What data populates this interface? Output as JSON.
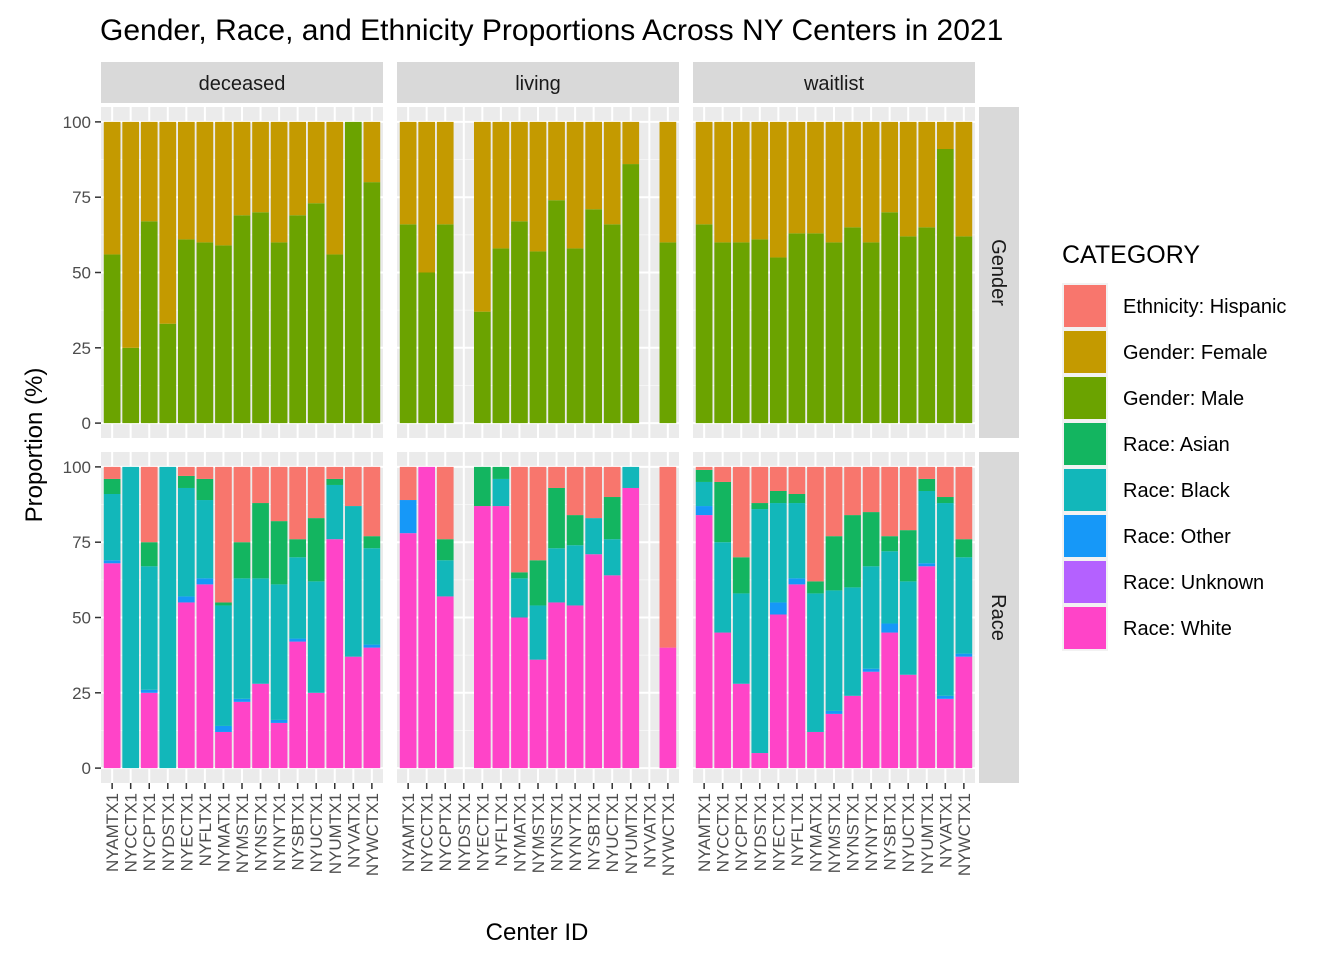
{
  "chart_data": {
    "type": "bar",
    "stacked": true,
    "title": "Gender, Race, and Ethnicity Proportions Across NY Centers in 2021",
    "xlabel": "Center ID",
    "ylabel": "Proportion (%)",
    "ylim": [
      0,
      100
    ],
    "yticks": [
      0,
      25,
      50,
      75,
      100
    ],
    "grid": true,
    "legend_position": "right",
    "legend_title": "CATEGORY",
    "categories": [
      "NYAMTX1",
      "NYCCTX1",
      "NYCPTX1",
      "NYDSTX1",
      "NYECTX1",
      "NYFLTX1",
      "NYMATX1",
      "NYMSTX1",
      "NYNSTX1",
      "NYNYTX1",
      "NYSBTX1",
      "NYUCTX1",
      "NYUMTX1",
      "NYVATX1",
      "NYWCTX1"
    ],
    "columns": [
      "deceased",
      "living",
      "waitlist"
    ],
    "rows": [
      "Gender",
      "Race"
    ],
    "series": [
      {
        "name": "Ethnicity: Hispanic",
        "color": "#F8766D"
      },
      {
        "name": "Gender: Female",
        "color": "#C49A00"
      },
      {
        "name": "Gender: Male",
        "color": "#6BA300"
      },
      {
        "name": "Race: Asian",
        "color": "#13B560"
      },
      {
        "name": "Race: Black",
        "color": "#12B7BA"
      },
      {
        "name": "Race: Other",
        "color": "#1698F8"
      },
      {
        "name": "Race: Unknown",
        "color": "#B461FF"
      },
      {
        "name": "Race: White",
        "color": "#FF44C8"
      }
    ],
    "stack_order_bottom_to_top": {
      "Gender": [
        "Gender: Male",
        "Gender: Female"
      ],
      "Race": [
        "Race: White",
        "Race: Unknown",
        "Race: Other",
        "Race: Black",
        "Race: Asian",
        "Ethnicity: Hispanic"
      ]
    },
    "values": {
      "deceased": {
        "Gender": {
          "NYAMTX1": {
            "Gender: Male": 56,
            "Gender: Female": 44
          },
          "NYCCTX1": {
            "Gender: Male": 25,
            "Gender: Female": 75
          },
          "NYCPTX1": {
            "Gender: Male": 67,
            "Gender: Female": 33
          },
          "NYDSTX1": {
            "Gender: Male": 33,
            "Gender: Female": 67
          },
          "NYECTX1": {
            "Gender: Male": 61,
            "Gender: Female": 39
          },
          "NYFLTX1": {
            "Gender: Male": 60,
            "Gender: Female": 40
          },
          "NYMATX1": {
            "Gender: Male": 59,
            "Gender: Female": 41
          },
          "NYMSTX1": {
            "Gender: Male": 69,
            "Gender: Female": 31
          },
          "NYNSTX1": {
            "Gender: Male": 70,
            "Gender: Female": 30
          },
          "NYNYTX1": {
            "Gender: Male": 60,
            "Gender: Female": 40
          },
          "NYSBTX1": {
            "Gender: Male": 69,
            "Gender: Female": 31
          },
          "NYUCTX1": {
            "Gender: Male": 73,
            "Gender: Female": 27
          },
          "NYUMTX1": {
            "Gender: Male": 56,
            "Gender: Female": 44
          },
          "NYVATX1": {
            "Gender: Male": 100,
            "Gender: Female": 0
          },
          "NYWCTX1": {
            "Gender: Male": 80,
            "Gender: Female": 20
          }
        },
        "Race": {
          "NYAMTX1": {
            "Race: White": 68,
            "Race: Unknown": 0,
            "Race: Other": 1,
            "Race: Black": 22,
            "Race: Asian": 5,
            "Ethnicity: Hispanic": 4
          },
          "NYCCTX1": {
            "Race: White": 0,
            "Race: Unknown": 0,
            "Race: Other": 0,
            "Race: Black": 100,
            "Race: Asian": 0,
            "Ethnicity: Hispanic": 0
          },
          "NYCPTX1": {
            "Race: White": 25,
            "Race: Unknown": 0,
            "Race: Other": 1,
            "Race: Black": 41,
            "Race: Asian": 8,
            "Ethnicity: Hispanic": 25
          },
          "NYDSTX1": {
            "Race: White": 0,
            "Race: Unknown": 0,
            "Race: Other": 0,
            "Race: Black": 100,
            "Race: Asian": 0,
            "Ethnicity: Hispanic": 0
          },
          "NYECTX1": {
            "Race: White": 55,
            "Race: Unknown": 0,
            "Race: Other": 2,
            "Race: Black": 36,
            "Race: Asian": 4,
            "Ethnicity: Hispanic": 3
          },
          "NYFLTX1": {
            "Race: White": 61,
            "Race: Unknown": 0,
            "Race: Other": 2,
            "Race: Black": 26,
            "Race: Asian": 7,
            "Ethnicity: Hispanic": 4
          },
          "NYMATX1": {
            "Race: White": 12,
            "Race: Unknown": 0,
            "Race: Other": 2,
            "Race: Black": 40,
            "Race: Asian": 1,
            "Ethnicity: Hispanic": 45
          },
          "NYMSTX1": {
            "Race: White": 22,
            "Race: Unknown": 0,
            "Race: Other": 1,
            "Race: Black": 40,
            "Race: Asian": 12,
            "Ethnicity: Hispanic": 25
          },
          "NYNSTX1": {
            "Race: White": 28,
            "Race: Unknown": 0,
            "Race: Other": 0,
            "Race: Black": 35,
            "Race: Asian": 25,
            "Ethnicity: Hispanic": 12
          },
          "NYNYTX1": {
            "Race: White": 15,
            "Race: Unknown": 0,
            "Race: Other": 1,
            "Race: Black": 45,
            "Race: Asian": 21,
            "Ethnicity: Hispanic": 18
          },
          "NYSBTX1": {
            "Race: White": 42,
            "Race: Unknown": 0,
            "Race: Other": 1,
            "Race: Black": 27,
            "Race: Asian": 6,
            "Ethnicity: Hispanic": 24
          },
          "NYUCTX1": {
            "Race: White": 25,
            "Race: Unknown": 0,
            "Race: Other": 0,
            "Race: Black": 37,
            "Race: Asian": 21,
            "Ethnicity: Hispanic": 17
          },
          "NYUMTX1": {
            "Race: White": 76,
            "Race: Unknown": 0,
            "Race: Other": 0,
            "Race: Black": 18,
            "Race: Asian": 2,
            "Ethnicity: Hispanic": 4
          },
          "NYVATX1": {
            "Race: White": 37,
            "Race: Unknown": 0,
            "Race: Other": 0,
            "Race: Black": 50,
            "Race: Asian": 0,
            "Ethnicity: Hispanic": 13
          },
          "NYWCTX1": {
            "Race: White": 40,
            "Race: Unknown": 0,
            "Race: Other": 1,
            "Race: Black": 32,
            "Race: Asian": 4,
            "Ethnicity: Hispanic": 23
          }
        }
      },
      "living": {
        "Gender": {
          "NYAMTX1": {
            "Gender: Male": 66,
            "Gender: Female": 34
          },
          "NYCCTX1": {
            "Gender: Male": 50,
            "Gender: Female": 50
          },
          "NYCPTX1": {
            "Gender: Male": 66,
            "Gender: Female": 34
          },
          "NYECTX1": {
            "Gender: Male": 37,
            "Gender: Female": 63
          },
          "NYFLTX1": {
            "Gender: Male": 58,
            "Gender: Female": 42
          },
          "NYMATX1": {
            "Gender: Male": 67,
            "Gender: Female": 33
          },
          "NYMSTX1": {
            "Gender: Male": 57,
            "Gender: Female": 43
          },
          "NYNSTX1": {
            "Gender: Male": 74,
            "Gender: Female": 26
          },
          "NYNYTX1": {
            "Gender: Male": 58,
            "Gender: Female": 42
          },
          "NYSBTX1": {
            "Gender: Male": 71,
            "Gender: Female": 29
          },
          "NYUCTX1": {
            "Gender: Male": 66,
            "Gender: Female": 34
          },
          "NYUMTX1": {
            "Gender: Male": 86,
            "Gender: Female": 14
          },
          "NYWCTX1": {
            "Gender: Male": 60,
            "Gender: Female": 40
          }
        },
        "Race": {
          "NYAMTX1": {
            "Race: White": 78,
            "Race: Unknown": 0,
            "Race: Other": 11,
            "Race: Black": 0,
            "Race: Asian": 0,
            "Ethnicity: Hispanic": 11
          },
          "NYCCTX1": {
            "Race: White": 100,
            "Race: Unknown": 0,
            "Race: Other": 0,
            "Race: Black": 0,
            "Race: Asian": 0,
            "Ethnicity: Hispanic": 0
          },
          "NYCPTX1": {
            "Race: White": 57,
            "Race: Unknown": 0,
            "Race: Other": 0,
            "Race: Black": 12,
            "Race: Asian": 7,
            "Ethnicity: Hispanic": 24
          },
          "NYECTX1": {
            "Race: White": 87,
            "Race: Unknown": 0,
            "Race: Other": 0,
            "Race: Black": 0,
            "Race: Asian": 13,
            "Ethnicity: Hispanic": 0
          },
          "NYFLTX1": {
            "Race: White": 87,
            "Race: Unknown": 0,
            "Race: Other": 0,
            "Race: Black": 9,
            "Race: Asian": 4,
            "Ethnicity: Hispanic": 0
          },
          "NYMATX1": {
            "Race: White": 50,
            "Race: Unknown": 0,
            "Race: Other": 0,
            "Race: Black": 13,
            "Race: Asian": 2,
            "Ethnicity: Hispanic": 35
          },
          "NYMSTX1": {
            "Race: White": 36,
            "Race: Unknown": 0,
            "Race: Other": 0,
            "Race: Black": 18,
            "Race: Asian": 15,
            "Ethnicity: Hispanic": 31
          },
          "NYNSTX1": {
            "Race: White": 55,
            "Race: Unknown": 0,
            "Race: Other": 0,
            "Race: Black": 18,
            "Race: Asian": 20,
            "Ethnicity: Hispanic": 7
          },
          "NYNYTX1": {
            "Race: White": 54,
            "Race: Unknown": 0,
            "Race: Other": 0,
            "Race: Black": 20,
            "Race: Asian": 10,
            "Ethnicity: Hispanic": 16
          },
          "NYSBTX1": {
            "Race: White": 71,
            "Race: Unknown": 0,
            "Race: Other": 0,
            "Race: Black": 12,
            "Race: Asian": 0,
            "Ethnicity: Hispanic": 17
          },
          "NYUCTX1": {
            "Race: White": 64,
            "Race: Unknown": 0,
            "Race: Other": 0,
            "Race: Black": 12,
            "Race: Asian": 14,
            "Ethnicity: Hispanic": 10
          },
          "NYUMTX1": {
            "Race: White": 93,
            "Race: Unknown": 0,
            "Race: Other": 0,
            "Race: Black": 7,
            "Race: Asian": 0,
            "Ethnicity: Hispanic": 0
          },
          "NYWCTX1": {
            "Race: White": 40,
            "Race: Unknown": 0,
            "Race: Other": 0,
            "Race: Black": 0,
            "Race: Asian": 0,
            "Ethnicity: Hispanic": 60
          }
        }
      },
      "waitlist": {
        "Gender": {
          "NYAMTX1": {
            "Gender: Male": 66,
            "Gender: Female": 34
          },
          "NYCCTX1": {
            "Gender: Male": 60,
            "Gender: Female": 40
          },
          "NYCPTX1": {
            "Gender: Male": 60,
            "Gender: Female": 40
          },
          "NYDSTX1": {
            "Gender: Male": 61,
            "Gender: Female": 39
          },
          "NYECTX1": {
            "Gender: Male": 55,
            "Gender: Female": 45
          },
          "NYFLTX1": {
            "Gender: Male": 63,
            "Gender: Female": 37
          },
          "NYMATX1": {
            "Gender: Male": 63,
            "Gender: Female": 37
          },
          "NYMSTX1": {
            "Gender: Male": 60,
            "Gender: Female": 40
          },
          "NYNSTX1": {
            "Gender: Male": 65,
            "Gender: Female": 35
          },
          "NYNYTX1": {
            "Gender: Male": 60,
            "Gender: Female": 40
          },
          "NYSBTX1": {
            "Gender: Male": 70,
            "Gender: Female": 30
          },
          "NYUCTX1": {
            "Gender: Male": 62,
            "Gender: Female": 38
          },
          "NYUMTX1": {
            "Gender: Male": 65,
            "Gender: Female": 35
          },
          "NYVATX1": {
            "Gender: Male": 91,
            "Gender: Female": 9
          },
          "NYWCTX1": {
            "Gender: Male": 62,
            "Gender: Female": 38
          }
        },
        "Race": {
          "NYAMTX1": {
            "Race: White": 84,
            "Race: Unknown": 0,
            "Race: Other": 3,
            "Race: Black": 8,
            "Race: Asian": 4,
            "Ethnicity: Hispanic": 1
          },
          "NYCCTX1": {
            "Race: White": 45,
            "Race: Unknown": 0,
            "Race: Other": 0,
            "Race: Black": 30,
            "Race: Asian": 20,
            "Ethnicity: Hispanic": 5
          },
          "NYCPTX1": {
            "Race: White": 28,
            "Race: Unknown": 0,
            "Race: Other": 0,
            "Race: Black": 30,
            "Race: Asian": 12,
            "Ethnicity: Hispanic": 30
          },
          "NYDSTX1": {
            "Race: White": 5,
            "Race: Unknown": 0,
            "Race: Other": 0,
            "Race: Black": 81,
            "Race: Asian": 2,
            "Ethnicity: Hispanic": 12
          },
          "NYECTX1": {
            "Race: White": 51,
            "Race: Unknown": 0,
            "Race: Other": 4,
            "Race: Black": 33,
            "Race: Asian": 4,
            "Ethnicity: Hispanic": 8
          },
          "NYFLTX1": {
            "Race: White": 61,
            "Race: Unknown": 0,
            "Race: Other": 2,
            "Race: Black": 25,
            "Race: Asian": 3,
            "Ethnicity: Hispanic": 9
          },
          "NYMATX1": {
            "Race: White": 12,
            "Race: Unknown": 0,
            "Race: Other": 0,
            "Race: Black": 46,
            "Race: Asian": 4,
            "Ethnicity: Hispanic": 38
          },
          "NYMSTX1": {
            "Race: White": 18,
            "Race: Unknown": 0,
            "Race: Other": 1,
            "Race: Black": 40,
            "Race: Asian": 18,
            "Ethnicity: Hispanic": 23
          },
          "NYNSTX1": {
            "Race: White": 24,
            "Race: Unknown": 0,
            "Race: Other": 0,
            "Race: Black": 36,
            "Race: Asian": 24,
            "Ethnicity: Hispanic": 16
          },
          "NYNYTX1": {
            "Race: White": 32,
            "Race: Unknown": 0,
            "Race: Other": 1,
            "Race: Black": 34,
            "Race: Asian": 18,
            "Ethnicity: Hispanic": 15
          },
          "NYSBTX1": {
            "Race: White": 45,
            "Race: Unknown": 0,
            "Race: Other": 3,
            "Race: Black": 24,
            "Race: Asian": 5,
            "Ethnicity: Hispanic": 23
          },
          "NYUCTX1": {
            "Race: White": 31,
            "Race: Unknown": 0,
            "Race: Other": 0,
            "Race: Black": 31,
            "Race: Asian": 17,
            "Ethnicity: Hispanic": 21
          },
          "NYUMTX1": {
            "Race: White": 67,
            "Race: Unknown": 0,
            "Race: Other": 1,
            "Race: Black": 24,
            "Race: Asian": 4,
            "Ethnicity: Hispanic": 4
          },
          "NYVATX1": {
            "Race: White": 23,
            "Race: Unknown": 0,
            "Race: Other": 1,
            "Race: Black": 64,
            "Race: Asian": 2,
            "Ethnicity: Hispanic": 10
          },
          "NYWCTX1": {
            "Race: White": 37,
            "Race: Unknown": 0,
            "Race: Other": 1,
            "Race: Black": 32,
            "Race: Asian": 6,
            "Ethnicity: Hispanic": 24
          }
        }
      }
    }
  }
}
